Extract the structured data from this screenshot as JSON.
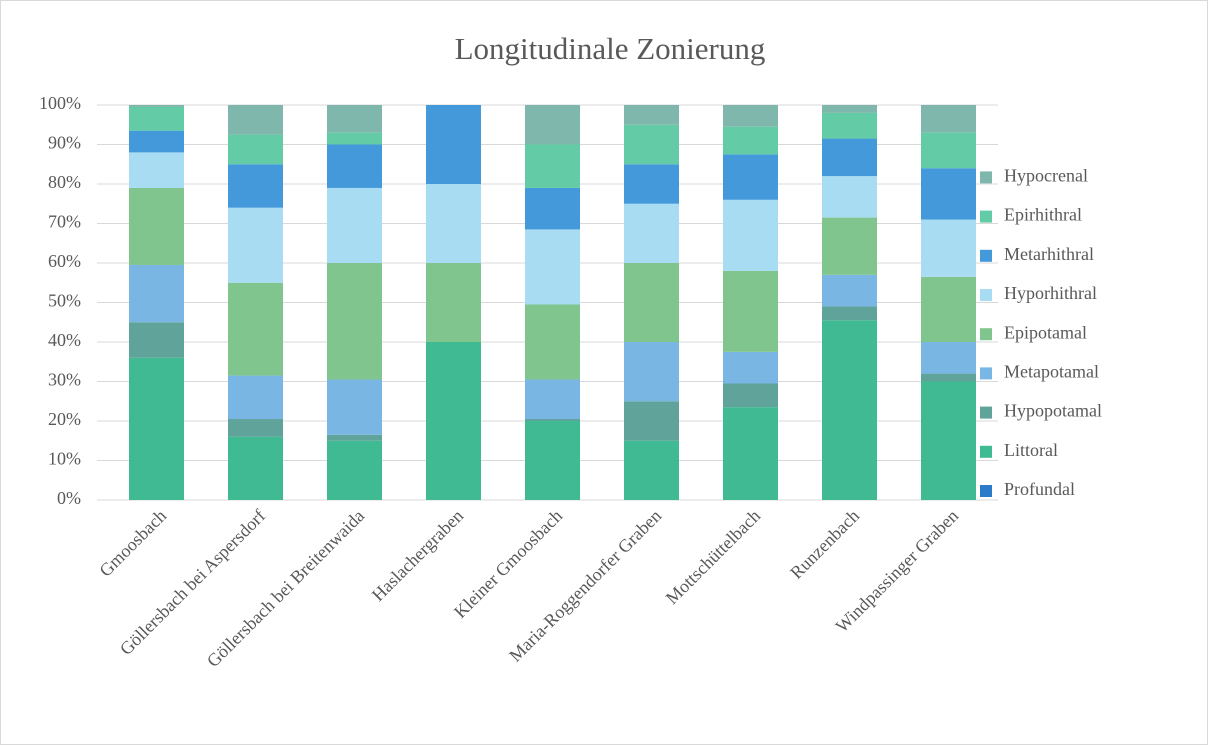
{
  "chart_data": {
    "type": "stacked_bar",
    "title": "Longitudinale Zonierung",
    "categories": [
      "Gmoosbach",
      "Göllersbach bei Aspersdorf",
      "Göllersbach bei Breitenwaida",
      "Haslachergraben",
      "Kleiner Gmoosbach",
      "Maria-Roggendorfer Graben",
      "Mottschüttelbach",
      "Runzenbach",
      "Windpassinger Graben"
    ],
    "series": [
      {
        "name": "Profundal",
        "color": "#2b7bc8",
        "values": [
          0,
          0,
          0,
          0,
          0,
          0,
          0,
          0,
          0
        ]
      },
      {
        "name": "Littoral",
        "color": "#3fba93",
        "values": [
          36,
          16,
          15,
          40,
          20,
          15,
          23.5,
          45.5,
          30
        ]
      },
      {
        "name": "Hypopotamal",
        "color": "#5fa39a",
        "values": [
          9,
          4.5,
          1.5,
          0,
          0.5,
          10,
          6,
          3.5,
          2
        ]
      },
      {
        "name": "Metapotamal",
        "color": "#79b6e4",
        "values": [
          14.5,
          11,
          14,
          0,
          10,
          15,
          8,
          8,
          8
        ]
      },
      {
        "name": "Epipotamal",
        "color": "#80c58d",
        "values": [
          19.5,
          23.5,
          29.5,
          20,
          19,
          20,
          20.5,
          14.5,
          16.5
        ]
      },
      {
        "name": "Hyporhithral",
        "color": "#a8dcf2",
        "values": [
          9,
          19,
          19,
          20,
          19,
          15,
          18,
          10.5,
          14.5
        ]
      },
      {
        "name": "Metarhithral",
        "color": "#4499db",
        "values": [
          5.5,
          11,
          11,
          20,
          10.5,
          10,
          11.5,
          9.5,
          13
        ]
      },
      {
        "name": "Epirhithral",
        "color": "#63cca6",
        "values": [
          6,
          7.5,
          3,
          0,
          11,
          10,
          7,
          6.5,
          9
        ]
      },
      {
        "name": "Hypocrenal",
        "color": "#7fb7ac",
        "values": [
          0.5,
          7.5,
          7,
          0,
          10,
          5,
          5.5,
          2,
          7
        ]
      }
    ],
    "ylim": [
      0,
      100
    ],
    "yticks": [
      {
        "value": 0,
        "label": "0%"
      },
      {
        "value": 10,
        "label": "10%"
      },
      {
        "value": 20,
        "label": "20%"
      },
      {
        "value": 30,
        "label": "30%"
      },
      {
        "value": 40,
        "label": "40%"
      },
      {
        "value": 50,
        "label": "50%"
      },
      {
        "value": 60,
        "label": "60%"
      },
      {
        "value": 70,
        "label": "70%"
      },
      {
        "value": 80,
        "label": "80%"
      },
      {
        "value": 90,
        "label": "90%"
      },
      {
        "value": 100,
        "label": "100%"
      }
    ],
    "grid": true,
    "legend": "right"
  }
}
